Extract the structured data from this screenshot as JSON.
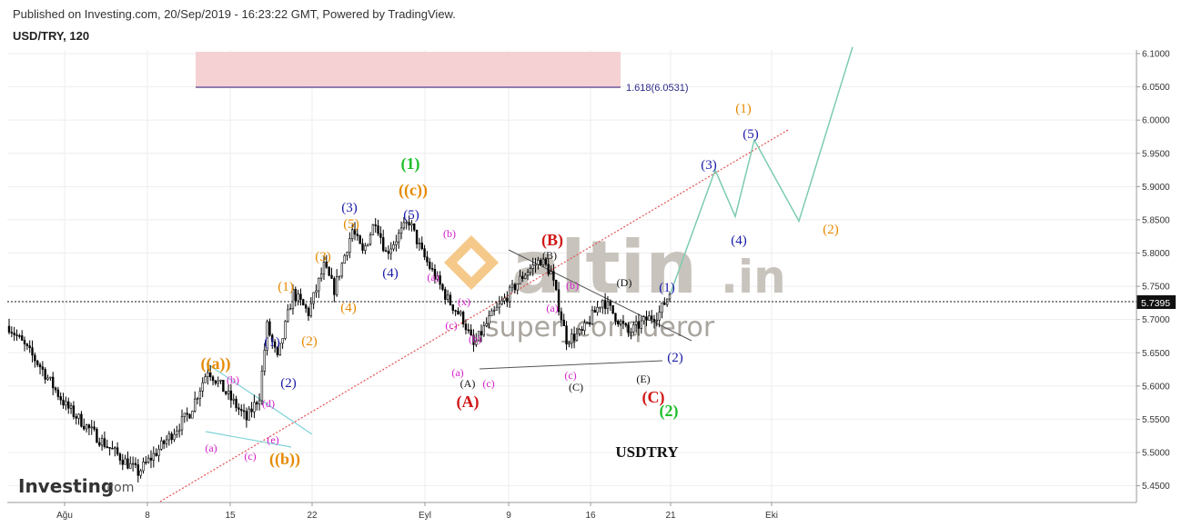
{
  "header": {
    "published": "Published on Investing.com, 20/Sep/2019 - 16:23:22 GMT, Powered by TradingView.",
    "symbol": "USD/TRY, 120"
  },
  "colors": {
    "candle": "#000000",
    "projection": "#7ccbb0",
    "channel": "#e35050",
    "zone": "#f5d1d4",
    "fib_line": "#2a2a8a",
    "triangle_line": "#555555",
    "cyan_line": "#7fd3d9",
    "wm_orange": "#f5c98a",
    "wm_gray": "#c8c4bd"
  },
  "watermark": {
    "brand": "altin",
    "tld": ".in",
    "author": "super_conqueror"
  },
  "logo": {
    "brand": "Investing",
    "suffix": ".com"
  },
  "chart_data": {
    "type": "candlestick",
    "x_tick_labels": [
      "Ağu",
      "8",
      "15",
      "22",
      "Eyl",
      "9",
      "16",
      "21",
      "Eki"
    ],
    "y_ticks": [
      5.45,
      5.5,
      5.55,
      5.6,
      5.65,
      5.7,
      5.75,
      5.8,
      5.85,
      5.9,
      5.95,
      6.0,
      6.05,
      6.1
    ],
    "ylim": [
      5.445,
      6.11
    ],
    "last_price": "5.7395",
    "fib_label": "1.618(6.0531)",
    "fib_level": 6.0531,
    "annotation": "USDTRY",
    "price_path_keypoints": [
      {
        "slot": 0,
        "value": 5.69
      },
      {
        "slot": 12,
        "value": 5.63
      },
      {
        "slot": 22,
        "value": 5.57
      },
      {
        "slot": 35,
        "value": 5.52
      },
      {
        "slot": 50,
        "value": 5.47
      },
      {
        "slot": 58,
        "value": 5.505
      },
      {
        "slot": 70,
        "value": 5.56
      },
      {
        "slot": 77,
        "value": 5.625
      },
      {
        "slot": 82,
        "value": 5.6
      },
      {
        "slot": 92,
        "value": 5.55
      },
      {
        "slot": 97,
        "value": 5.585
      },
      {
        "slot": 100,
        "value": 5.69
      },
      {
        "slot": 104,
        "value": 5.64
      },
      {
        "slot": 110,
        "value": 5.74
      },
      {
        "slot": 116,
        "value": 5.71
      },
      {
        "slot": 122,
        "value": 5.78
      },
      {
        "slot": 126,
        "value": 5.745
      },
      {
        "slot": 133,
        "value": 5.835
      },
      {
        "slot": 137,
        "value": 5.8
      },
      {
        "slot": 142,
        "value": 5.85
      },
      {
        "slot": 146,
        "value": 5.8
      },
      {
        "slot": 155,
        "value": 5.848
      },
      {
        "slot": 160,
        "value": 5.8
      },
      {
        "slot": 170,
        "value": 5.73
      },
      {
        "slot": 176,
        "value": 5.7
      },
      {
        "slot": 180,
        "value": 5.66
      },
      {
        "slot": 186,
        "value": 5.7
      },
      {
        "slot": 200,
        "value": 5.77
      },
      {
        "slot": 206,
        "value": 5.79
      },
      {
        "slot": 210,
        "value": 5.77
      },
      {
        "slot": 216,
        "value": 5.67
      },
      {
        "slot": 222,
        "value": 5.68
      },
      {
        "slot": 230,
        "value": 5.73
      },
      {
        "slot": 235,
        "value": 5.705
      },
      {
        "slot": 240,
        "value": 5.68
      },
      {
        "slot": 247,
        "value": 5.7
      },
      {
        "slot": 252,
        "value": 5.71
      },
      {
        "slot": 256,
        "value": 5.74
      }
    ],
    "projection_path": [
      {
        "date": "Sep 20 (last bar)",
        "value": 5.74
      },
      {
        "date": "Sep 27",
        "value": 5.925
      },
      {
        "date": "Sep 30",
        "value": 5.855
      },
      {
        "date": "Oct 2",
        "value": 5.97
      },
      {
        "date": "Oct 7",
        "value": 5.848
      },
      {
        "date": "Oct 12",
        "value": 6.11
      }
    ],
    "wave_labels": [
      {
        "text": "(1)",
        "color": "#1fbf2a",
        "size": "big"
      },
      {
        "text": "((c))",
        "color": "#e68a00",
        "size": "big"
      },
      {
        "text": "((a))",
        "color": "#e68a00",
        "size": "big"
      },
      {
        "text": "((b))",
        "color": "#e68a00",
        "size": "big"
      },
      {
        "text": "(2)",
        "color": "#1fbf2a",
        "size": "big"
      },
      {
        "text": "(A)",
        "color": "#d11515",
        "size": "big"
      },
      {
        "text": "(B)",
        "color": "#d11515",
        "size": "big"
      },
      {
        "text": "(C)",
        "color": "#d11515",
        "size": "big"
      },
      {
        "text": "(1)",
        "color": "#e68a00",
        "size": "mid"
      },
      {
        "text": "(2)",
        "color": "#e68a00",
        "size": "mid"
      },
      {
        "text": "(3)",
        "color": "#e68a00",
        "size": "mid"
      },
      {
        "text": "(4)",
        "color": "#e68a00",
        "size": "mid"
      },
      {
        "text": "(5)",
        "color": "#e68a00",
        "size": "mid"
      },
      {
        "text": "(1)",
        "color": "#1a1aa8",
        "size": "mid"
      },
      {
        "text": "(2)",
        "color": "#1a1aa8",
        "size": "mid"
      },
      {
        "text": "(3)",
        "color": "#1a1aa8",
        "size": "mid"
      },
      {
        "text": "(4)",
        "color": "#1a1aa8",
        "size": "mid"
      },
      {
        "text": "(5)",
        "color": "#1a1aa8",
        "size": "mid"
      },
      {
        "text": "(1)",
        "color": "#1a1aa8",
        "size": "mid"
      },
      {
        "text": "(2)",
        "color": "#1a1aa8",
        "size": "mid"
      },
      {
        "text": "(3)",
        "color": "#1a1aa8",
        "size": "mid"
      },
      {
        "text": "(4)",
        "color": "#1a1aa8",
        "size": "mid"
      },
      {
        "text": "(5)",
        "color": "#1a1aa8",
        "size": "mid"
      },
      {
        "text": "(1)",
        "color": "#e68a00",
        "size": "mid"
      },
      {
        "text": "(2)",
        "color": "#e68a00",
        "size": "mid"
      },
      {
        "text": "(b)",
        "color": "#d41ec9",
        "size": "sm"
      },
      {
        "text": "(d)",
        "color": "#d41ec9",
        "size": "sm"
      },
      {
        "text": "(a)",
        "color": "#d41ec9",
        "size": "sm"
      },
      {
        "text": "(c)",
        "color": "#d41ec9",
        "size": "sm"
      },
      {
        "text": "(e)",
        "color": "#d41ec9",
        "size": "sm"
      },
      {
        "text": "(b)",
        "color": "#d41ec9",
        "size": "sm"
      },
      {
        "text": "(a)",
        "color": "#d41ec9",
        "size": "sm"
      },
      {
        "text": "(x)",
        "color": "#d41ec9",
        "size": "sm"
      },
      {
        "text": "(c)",
        "color": "#d41ec9",
        "size": "sm"
      },
      {
        "text": "(a)",
        "color": "#d41ec9",
        "size": "sm"
      },
      {
        "text": "(b)",
        "color": "#d41ec9",
        "size": "sm"
      },
      {
        "text": "(c)",
        "color": "#d41ec9",
        "size": "sm"
      },
      {
        "text": "(a)",
        "color": "#d41ec9",
        "size": "sm"
      },
      {
        "text": "(b)",
        "color": "#d41ec9",
        "size": "sm"
      },
      {
        "text": "(c)",
        "color": "#d41ec9",
        "size": "sm"
      },
      {
        "text": "(A)",
        "color": "#111111",
        "size": "sm"
      },
      {
        "text": "(B)",
        "color": "#111111",
        "size": "sm"
      },
      {
        "text": "(C)",
        "color": "#111111",
        "size": "sm"
      },
      {
        "text": "(D)",
        "color": "#111111",
        "size": "sm"
      },
      {
        "text": "(E)",
        "color": "#111111",
        "size": "sm"
      }
    ]
  }
}
